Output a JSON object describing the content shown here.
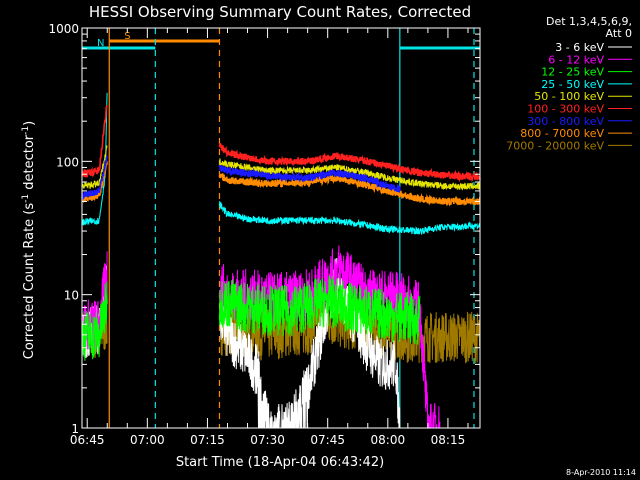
{
  "chart_data": {
    "type": "line",
    "title": "HESSI Observing Summary Count Rates, Corrected",
    "xlabel": "Start Time (18-Apr-04 06:43:42)",
    "ylabel": "Corrected Count Rate (s",
    "ylabel_sup1": "-1",
    "ylabel_mid": " detector",
    "ylabel_sup2": "-1",
    "ylabel_end": ")",
    "y_scale": "log",
    "ylim": [
      1,
      1000
    ],
    "xlim": [
      "06:43:42",
      "08:23:00"
    ],
    "x_ticks": [
      "06:45",
      "07:00",
      "07:15",
      "07:30",
      "07:45",
      "08:00",
      "08:15"
    ],
    "y_ticks": [
      "1",
      "10",
      "100",
      "1000"
    ],
    "legend_header": [
      "Det 1,3,4,5,6,9,",
      "Att 0"
    ],
    "legend_placement": "outside-right",
    "timestamp": "8-Apr-2010 11:14",
    "flags": [
      {
        "label": "S",
        "color": "#ff8c00",
        "start": "06:50:30",
        "end": "07:18:00"
      },
      {
        "label": "N",
        "color": "#00e5e5",
        "start": "06:43:42",
        "end": "07:02:00"
      },
      {
        "label": "",
        "color": "#00e5e5",
        "start": "08:03:00",
        "end": "08:23:00"
      }
    ],
    "vlines": [
      {
        "t": "06:50:30",
        "color": "#ff8c00",
        "dash": false
      },
      {
        "t": "07:02:00",
        "color": "#00e5e5",
        "dash": true
      },
      {
        "t": "07:18:00",
        "color": "#ff8c00",
        "dash": true
      },
      {
        "t": "08:03:00",
        "color": "#00e5e5",
        "dash": false
      },
      {
        "t": "08:21:30",
        "color": "#00e5e5",
        "dash": true
      }
    ],
    "segments": [
      [
        "06:43:42",
        "06:50:00"
      ],
      [
        "07:18:00",
        "08:23:00"
      ]
    ],
    "series": [
      {
        "name": "3 - 6 keV",
        "color": "#ffffff",
        "x": [
          "06:43:42",
          "06:48:00",
          "06:50:00",
          "07:18:00",
          "07:20:00",
          "07:25:00",
          "07:28:00",
          "07:30:00",
          "07:35:00",
          "07:40:00",
          "07:45:00",
          "07:47:00",
          "07:50:00",
          "07:55:00",
          "07:58:00",
          "08:02:00",
          "08:03:00"
        ],
        "values": [
          5,
          5.5,
          13,
          7,
          5,
          3.5,
          2.5,
          1,
          1,
          2,
          8,
          13,
          8,
          4,
          3,
          3,
          1
        ]
      },
      {
        "name": "6 - 12 keV",
        "color": "#ff00ff",
        "x": [
          "06:43:42",
          "06:48:00",
          "06:50:00",
          "07:18:00",
          "07:20:00",
          "07:25:00",
          "07:30:00",
          "07:35:00",
          "07:40:00",
          "07:45:00",
          "07:48:00",
          "07:52:00",
          "07:55:00",
          "08:00:00",
          "08:05:00",
          "08:08:00",
          "08:10:00",
          "08:12:00",
          "08:13:00"
        ],
        "values": [
          6,
          6,
          16,
          12,
          10,
          10,
          9.5,
          9.5,
          10,
          13,
          16,
          12,
          10,
          10,
          9,
          8,
          1,
          1,
          1
        ]
      },
      {
        "name": "12 - 25 keV",
        "color": "#00ff00",
        "x": [
          "06:43:42",
          "06:48:00",
          "06:50:00",
          "07:18:00",
          "07:25:00",
          "07:35:00",
          "07:45:00",
          "07:50:00",
          "08:00:00",
          "08:08:00"
        ],
        "values": [
          5,
          5,
          9,
          9,
          8,
          7.5,
          9,
          8,
          7,
          6.5
        ]
      },
      {
        "name": "25 - 50 keV",
        "color": "#00ffff",
        "x": [
          "06:43:42",
          "06:48:00",
          "06:49:30",
          "06:50:00",
          "07:18:00",
          "07:20:00",
          "07:25:00",
          "07:30:00",
          "07:40:00",
          "07:47:00",
          "07:55:00",
          "08:00:00",
          "08:08:00",
          "08:13:00",
          "08:23:00"
        ],
        "values": [
          35,
          36,
          80,
          350,
          48,
          40,
          37,
          36,
          36,
          36,
          33,
          31,
          30,
          32,
          33
        ]
      },
      {
        "name": "50 - 100 keV",
        "color": "#e5e500",
        "x": [
          "06:43:42",
          "06:48:00",
          "06:50:00",
          "07:18:00",
          "07:20:00",
          "07:30:00",
          "07:40:00",
          "07:47:00",
          "07:55:00",
          "08:00:00",
          "08:08:00",
          "08:15:00",
          "08:23:00"
        ],
        "values": [
          65,
          68,
          130,
          100,
          95,
          85,
          85,
          90,
          82,
          75,
          68,
          65,
          65
        ]
      },
      {
        "name": "100 - 300 keV",
        "color": "#ff2020",
        "x": [
          "06:43:42",
          "06:48:00",
          "06:50:00",
          "07:18:00",
          "07:20:00",
          "07:30:00",
          "07:40:00",
          "07:47:00",
          "07:55:00",
          "08:00:00",
          "08:08:00",
          "08:15:00",
          "08:23:00"
        ],
        "values": [
          80,
          85,
          280,
          135,
          115,
          100,
          100,
          110,
          100,
          92,
          82,
          78,
          76
        ]
      },
      {
        "name": "300 - 800 keV",
        "color": "#1a1aff",
        "x": [
          "06:43:42",
          "06:48:00",
          "06:50:00",
          "07:18:00",
          "07:20:00",
          "07:30:00",
          "07:40:00",
          "07:47:00",
          "07:55:00",
          "08:00:00",
          "08:03:00"
        ],
        "values": [
          55,
          60,
          110,
          90,
          85,
          78,
          75,
          82,
          74,
          65,
          62
        ]
      },
      {
        "name": "800 - 7000 keV",
        "color": "#ff8c00",
        "x": [
          "06:43:42",
          "06:48:00",
          "06:50:00",
          "07:18:00",
          "07:20:00",
          "07:30:00",
          "07:40:00",
          "07:47:00",
          "07:55:00",
          "08:00:00",
          "08:08:00",
          "08:15:00",
          "08:23:00"
        ],
        "values": [
          52,
          55,
          100,
          80,
          72,
          68,
          70,
          75,
          66,
          60,
          52,
          50,
          50
        ]
      },
      {
        "name": "7000 - 20000 keV",
        "color": "#a07a00",
        "x": [
          "06:43:42",
          "06:48:00",
          "06:50:00",
          "07:18:00",
          "07:30:00",
          "07:40:00",
          "07:45:00",
          "07:55:00",
          "08:05:00",
          "08:15:00",
          "08:23:00"
        ],
        "values": [
          5,
          5,
          6,
          5.5,
          5,
          5.5,
          6.5,
          5.5,
          4.8,
          4.8,
          4.8
        ]
      }
    ]
  }
}
